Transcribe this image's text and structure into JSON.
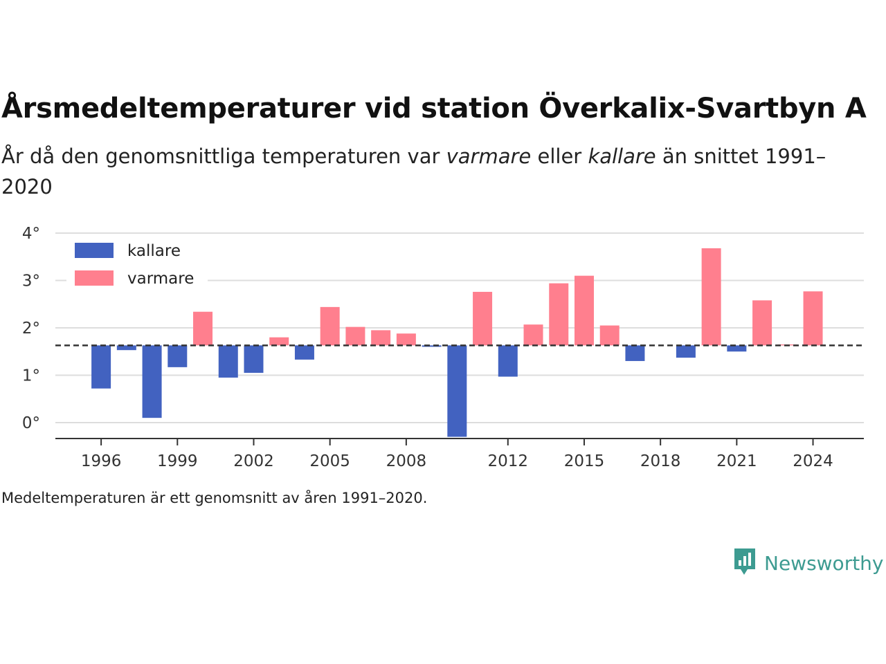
{
  "title": "Årsmedeltemperaturer vid station Överkalix-Svartbyn A",
  "subtitle": {
    "part1": "År då den genomsnittliga temperaturen var ",
    "warmer": "varmare",
    "part2": " eller ",
    "colder": "kallare",
    "part3": " än snittet 1991–2020"
  },
  "note": "Medeltemperaturen är ett genomsnitt av åren 1991–2020.",
  "logo": {
    "text": "Newsworthy",
    "icon": "newsworthy-logo-icon"
  },
  "colors": {
    "kallare": "#4262c0",
    "varmare": "#ff7f8e",
    "baseline": "#333333",
    "grid": "#dddddd",
    "brand": "#3d9b91"
  },
  "chart_data": {
    "type": "bar",
    "baseline": 1.63,
    "ylim": [
      -0.3,
      4
    ],
    "yticks": [
      0,
      1,
      2,
      3,
      4
    ],
    "ytick_labels": [
      "0°",
      "1°",
      "2°",
      "3°",
      "4°"
    ],
    "xlim": [
      1994.2,
      2026
    ],
    "xticks": [
      1996,
      1999,
      2002,
      2005,
      2008,
      2012,
      2015,
      2018,
      2021,
      2024
    ],
    "xtick_labels": [
      "1996",
      "1999",
      "2002",
      "2005",
      "2008",
      "2012",
      "2015",
      "2018",
      "2021",
      "2024"
    ],
    "legend": {
      "position": "top-left",
      "entries": [
        {
          "name": "kallare",
          "key": "kallare"
        },
        {
          "name": "varmare",
          "key": "varmare"
        }
      ]
    },
    "grid": true,
    "years": [
      1996,
      1997,
      1998,
      1999,
      2000,
      2001,
      2002,
      2003,
      2004,
      2005,
      2006,
      2007,
      2008,
      2009,
      2010,
      2011,
      2012,
      2013,
      2014,
      2015,
      2016,
      2017,
      2018,
      2019,
      2020,
      2021,
      2022,
      2023,
      2024
    ],
    "values": [
      0.72,
      1.53,
      0.1,
      1.17,
      2.34,
      0.95,
      1.05,
      1.8,
      1.33,
      2.44,
      2.02,
      1.95,
      1.88,
      1.6,
      -0.3,
      2.76,
      0.97,
      2.07,
      2.94,
      3.1,
      2.05,
      1.3,
      null,
      1.37,
      3.68,
      1.5,
      2.58,
      1.65,
      2.77
    ]
  }
}
